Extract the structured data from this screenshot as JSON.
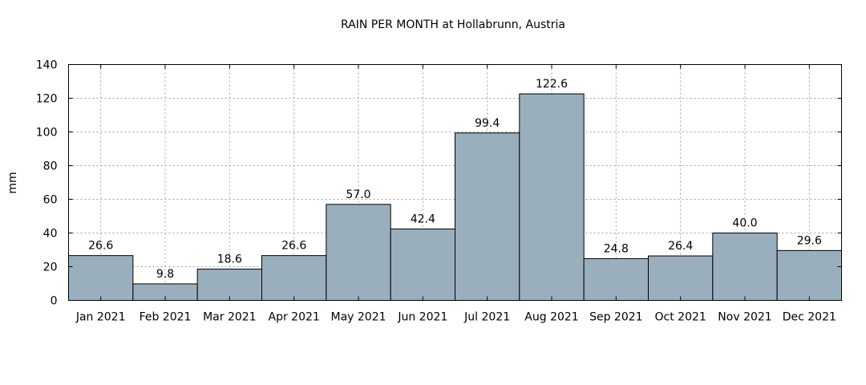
{
  "chart_data": {
    "type": "bar",
    "title": "RAIN PER MONTH at Hollabrunn, Austria",
    "ylabel": "mm",
    "xlabel": "",
    "ylim": [
      0,
      140
    ],
    "yticks": [
      0,
      20,
      40,
      60,
      80,
      100,
      120,
      140
    ],
    "grid": true,
    "bar_color": "#9aafbe",
    "categories": [
      "Jan 2021",
      "Feb 2021",
      "Mar 2021",
      "Apr 2021",
      "May 2021",
      "Jun 2021",
      "Jul 2021",
      "Aug 2021",
      "Sep 2021",
      "Oct 2021",
      "Nov 2021",
      "Dec 2021"
    ],
    "values": [
      26.6,
      9.8,
      18.6,
      26.6,
      57.0,
      42.4,
      99.4,
      122.6,
      24.8,
      26.4,
      40.0,
      29.6
    ],
    "value_labels": [
      "26.6",
      "9.8",
      "18.6",
      "26.6",
      "57.0",
      "42.4",
      "99.4",
      "122.6",
      "24.8",
      "26.4",
      "40.0",
      "29.6"
    ]
  }
}
